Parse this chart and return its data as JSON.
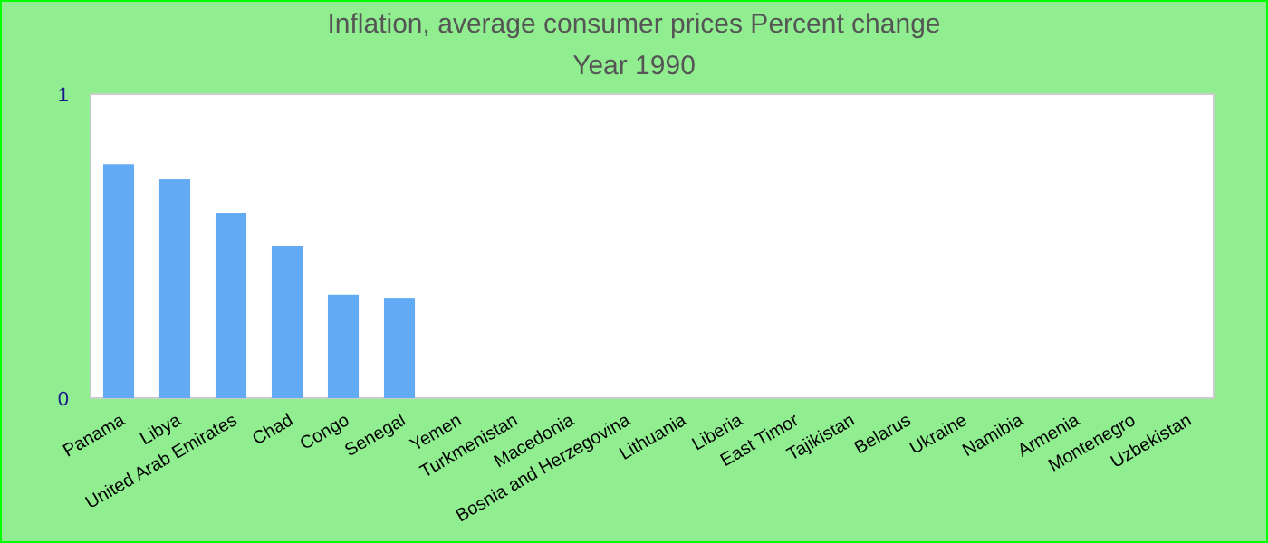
{
  "chart_data": {
    "type": "bar",
    "title": "Inflation, average consumer prices  Percent change",
    "subtitle": "Year 1990",
    "categories": [
      "Panama",
      "Libya",
      "United Arab Emirates",
      "Chad",
      "Congo",
      "Senegal",
      "Yemen",
      "Turkmenistan",
      "Macedonia",
      "Bosnia and Herzegovina",
      "Lithuania",
      "Liberia",
      "East Timor",
      "Tajikistan",
      "Belarus",
      "Ukraine",
      "Namibia",
      "Armenia",
      "Montenegro",
      "Uzbekistan"
    ],
    "values": [
      0.77,
      0.72,
      0.61,
      0.5,
      0.34,
      0.33,
      null,
      null,
      null,
      null,
      null,
      null,
      null,
      null,
      null,
      null,
      null,
      null,
      null,
      null
    ],
    "color": "#63aaf5",
    "ylim": [
      0,
      1
    ],
    "yticks": [
      0,
      1
    ],
    "grid": false
  }
}
